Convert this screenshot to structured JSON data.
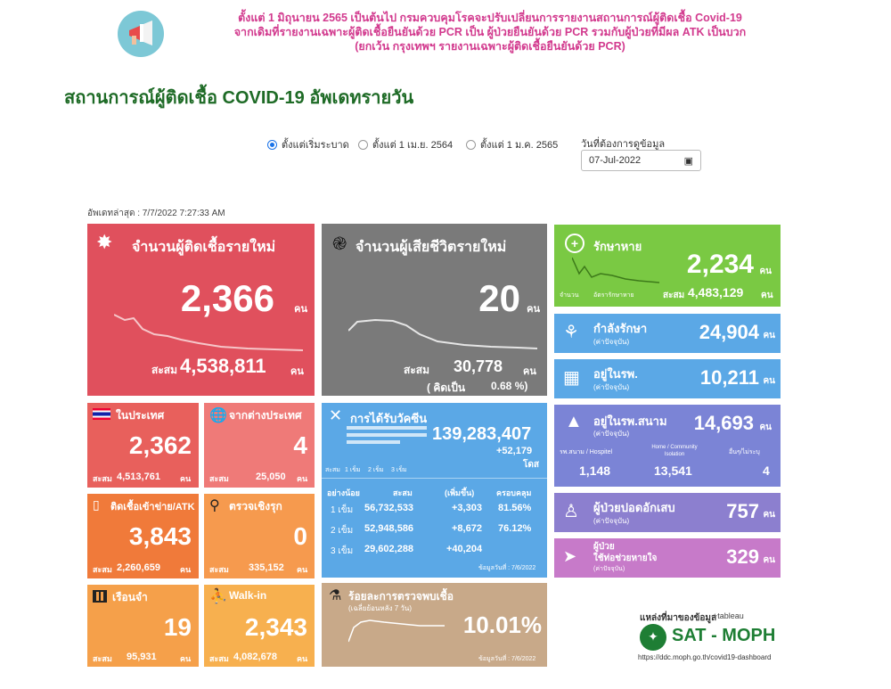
{
  "notice": {
    "line1": "ตั้งแต่ 1 มิถุนายน 2565 เป็นต้นไป กรมควบคุมโรคจะปรับเปลี่ยนการรายงานสถานการณ์ผู้ติดเชื้อ Covid-19",
    "line2": "จากเดิมที่รายงานเฉพาะผู้ติดเชื้อยืนยันด้วย PCR เป็น ผู้ป่วยยืนยันด้วย PCR รวมกับผู้ป่วยที่มีผล ATK เป็นบวก",
    "line3": "(ยกเว้น กรุงเทพฯ รายงานเฉพาะผู้ติดเชื้อยืนยันด้วย PCR)"
  },
  "title": "สถานการณ์ผู้ติดเชื้อ COVID-19 อัพเดทรายวัน",
  "filters": {
    "options": [
      "ตั้งแต่เริ่มระบาด",
      "ตั้งแต่ 1 เม.ย. 2564",
      "ตั้งแต่ 1 ม.ค. 2565"
    ],
    "date_label": "วันที่ต้องการดูข้อมูล",
    "date_value": "07-Jul-2022"
  },
  "updated": "อัพเดทล่าสุด : 7/7/2022 7:27:33 AM",
  "unit": "คน",
  "accum": "สะสม",
  "new_cases": {
    "title": "จำนวนผู้ติดเชื้อรายใหม่",
    "value": "2,366",
    "total": "4,538,811",
    "color": "#e0505d"
  },
  "deaths": {
    "title": "จำนวนผู้เสียชีวิตรายใหม่",
    "value": "20",
    "total": "30,778",
    "pct_label": "( คิดเป็น",
    "pct": "0.68 %)",
    "color": "#7a7a7a"
  },
  "recovered": {
    "title": "รักษาหาย",
    "value": "2,234",
    "total": "4,483,129",
    "legend1": "จำนวน",
    "legend2": "อัตรารักษาหาย",
    "color": "#7ac943"
  },
  "treating": {
    "title": "กำลังรักษา",
    "sub": "(ค่าปัจจุบัน)",
    "value": "24,904",
    "color": "#5ba8e6"
  },
  "hospital": {
    "title": "อยู่ในรพ.",
    "sub": "(ค่าปัจจุบัน)",
    "value": "10,211",
    "color": "#5ba8e6"
  },
  "field": {
    "title": "อยู่ในรพ.สนาม",
    "sub": "(ค่าปัจจุบัน)",
    "value": "14,693",
    "c1": "รพ.สนาม / Hospitel",
    "c2": "Home / Community Isolation",
    "c3": "อื่นๆ/ไม่ระบุ",
    "v1": "1,148",
    "v2": "13,541",
    "v3": "4",
    "color": "#7b84d6"
  },
  "pneumonia": {
    "title": "ผู้ป่วยปอดอักเสบ",
    "sub": "(ค่าปัจจุบัน)",
    "value": "757",
    "color": "#8c7fcf"
  },
  "ventilator": {
    "title1": "ผู้ป่วย",
    "title2": "ใช้ท่อช่วยหายใจ",
    "sub": "(ค่าปัจจุบัน)",
    "value": "329",
    "color": "#c77ac9"
  },
  "domestic": {
    "title": "ในประเทศ",
    "value": "2,362",
    "total": "4,513,761",
    "color": "#e8605c"
  },
  "abroad": {
    "title": "จากต่างประเทศ",
    "value": "4",
    "total": "25,050",
    "color": "#ef7a78"
  },
  "atk": {
    "title": "ติดเชื้อเข้าข่าย/ATK",
    "value": "3,843",
    "total": "2,260,659",
    "color": "#f07a3a"
  },
  "active": {
    "title": "ตรวจเชิงรุก",
    "value": "0",
    "total": "335,152",
    "color": "#f69a4e"
  },
  "prison": {
    "title": "เรือนจำ",
    "value": "19",
    "total": "95,931",
    "color": "#f5a04a"
  },
  "walkin": {
    "title": "Walk-in",
    "value": "2,343",
    "total": "4,082,678",
    "color": "#f7b04f"
  },
  "vaccine": {
    "title": "การได้รับวัคซีน",
    "total": "139,283,407",
    "added": "+52,179",
    "unit": "โดส",
    "legend": [
      "สะสม",
      "1 เข็ม",
      "2 เข็ม",
      "3 เข็ม"
    ],
    "headers": [
      "อย่างน้อย",
      "สะสม",
      "(เพิ่มขึ้น)",
      "ครอบคลุม"
    ],
    "rows": [
      [
        "1 เข็ม",
        "56,732,533",
        "+3,303",
        "81.56%"
      ],
      [
        "2 เข็ม",
        "52,948,586",
        "+8,672",
        "76.12%"
      ],
      [
        "3 เข็ม",
        "29,602,288",
        "+40,204",
        ""
      ]
    ],
    "note": "ข้อมูลวันที่ : 7/6/2022",
    "color": "#5ba8e6"
  },
  "positivity": {
    "title": "ร้อยละการตรวจพบเชื้อ",
    "sub": "(เฉลี่ยย้อนหลัง 7 วัน)",
    "value": "10.01%",
    "note": "ข้อมูลวันที่ : 7/6/2022",
    "color": "#c8a989"
  },
  "source": {
    "label": "แหล่งที่มาของข้อมูล",
    "tableau": "+tableau",
    "name": "SAT - MOPH",
    "url": "https://ddc.moph.go.th/covid19-dashboard"
  }
}
